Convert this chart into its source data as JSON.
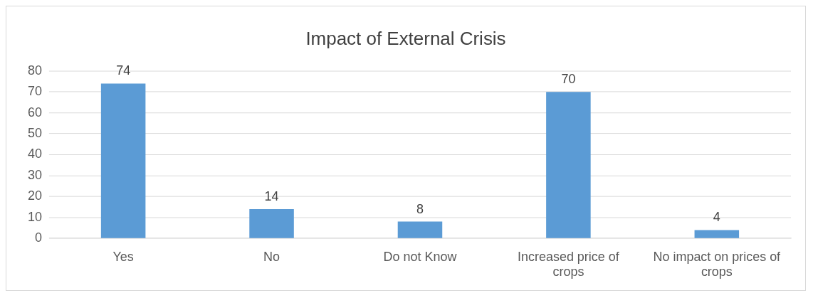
{
  "chart_data": {
    "type": "bar",
    "title": "Impact of External Crisis",
    "categories": [
      "Yes",
      "No",
      "Do not Know",
      "Increased price of crops",
      "No impact on prices of crops"
    ],
    "values": [
      74,
      14,
      8,
      70,
      4
    ],
    "color": "#5b9bd5",
    "ylim": [
      0,
      80
    ],
    "yticks": [
      0,
      10,
      20,
      30,
      40,
      50,
      60,
      70,
      80
    ],
    "grid": "y",
    "data_labels": true,
    "legend": false
  }
}
